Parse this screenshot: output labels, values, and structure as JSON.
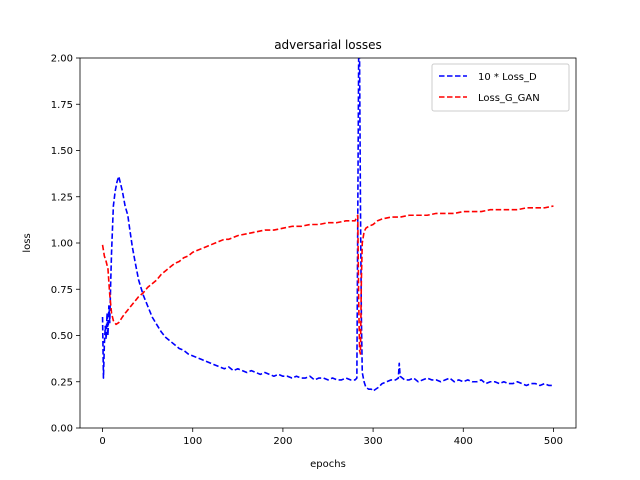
{
  "chart_data": {
    "type": "line",
    "title": "adversarial losses",
    "xlabel": "epochs",
    "ylabel": "loss",
    "xlim": [
      -25,
      525
    ],
    "ylim": [
      0.0,
      2.0
    ],
    "xticks": [
      0,
      100,
      200,
      300,
      400,
      500
    ],
    "xtick_labels": [
      "0",
      "100",
      "200",
      "300",
      "400",
      "500"
    ],
    "yticks": [
      0.0,
      0.25,
      0.5,
      0.75,
      1.0,
      1.25,
      1.5,
      1.75,
      2.0
    ],
    "ytick_labels": [
      "0.00",
      "0.25",
      "0.50",
      "0.75",
      "1.00",
      "1.25",
      "1.50",
      "1.75",
      "2.00"
    ],
    "grid": false,
    "legend_position": "top-right",
    "series": [
      {
        "name": "10 * Loss_D",
        "color": "#0000ff",
        "dash": "dashed",
        "points": [
          [
            0,
            0.6
          ],
          [
            1,
            0.27
          ],
          [
            2,
            0.45
          ],
          [
            3,
            0.55
          ],
          [
            4,
            0.48
          ],
          [
            5,
            0.62
          ],
          [
            6,
            0.5
          ],
          [
            7,
            0.66
          ],
          [
            8,
            0.57
          ],
          [
            9,
            0.78
          ],
          [
            10,
            0.95
          ],
          [
            12,
            1.2
          ],
          [
            14,
            1.28
          ],
          [
            16,
            1.33
          ],
          [
            18,
            1.36
          ],
          [
            20,
            1.32
          ],
          [
            22,
            1.28
          ],
          [
            25,
            1.2
          ],
          [
            28,
            1.15
          ],
          [
            30,
            1.08
          ],
          [
            33,
            0.98
          ],
          [
            36,
            0.9
          ],
          [
            40,
            0.8
          ],
          [
            45,
            0.72
          ],
          [
            50,
            0.66
          ],
          [
            55,
            0.6
          ],
          [
            60,
            0.56
          ],
          [
            65,
            0.52
          ],
          [
            70,
            0.49
          ],
          [
            75,
            0.47
          ],
          [
            80,
            0.45
          ],
          [
            85,
            0.43
          ],
          [
            90,
            0.42
          ],
          [
            95,
            0.4
          ],
          [
            100,
            0.39
          ],
          [
            105,
            0.38
          ],
          [
            110,
            0.37
          ],
          [
            115,
            0.36
          ],
          [
            120,
            0.35
          ],
          [
            125,
            0.34
          ],
          [
            130,
            0.33
          ],
          [
            135,
            0.32
          ],
          [
            140,
            0.33
          ],
          [
            145,
            0.31
          ],
          [
            150,
            0.32
          ],
          [
            155,
            0.31
          ],
          [
            160,
            0.3
          ],
          [
            165,
            0.31
          ],
          [
            170,
            0.3
          ],
          [
            175,
            0.29
          ],
          [
            180,
            0.3
          ],
          [
            185,
            0.29
          ],
          [
            190,
            0.28
          ],
          [
            195,
            0.29
          ],
          [
            200,
            0.28
          ],
          [
            205,
            0.28
          ],
          [
            210,
            0.27
          ],
          [
            215,
            0.28
          ],
          [
            220,
            0.27
          ],
          [
            225,
            0.27
          ],
          [
            230,
            0.28
          ],
          [
            235,
            0.26
          ],
          [
            240,
            0.27
          ],
          [
            245,
            0.27
          ],
          [
            250,
            0.26
          ],
          [
            255,
            0.27
          ],
          [
            260,
            0.26
          ],
          [
            265,
            0.26
          ],
          [
            270,
            0.27
          ],
          [
            275,
            0.26
          ],
          [
            280,
            0.26
          ],
          [
            282,
            0.27
          ],
          [
            284,
            2.0
          ],
          [
            285,
            2.0
          ],
          [
            286,
            1.2
          ],
          [
            287,
            0.6
          ],
          [
            288,
            0.3
          ],
          [
            290,
            0.25
          ],
          [
            292,
            0.22
          ],
          [
            295,
            0.21
          ],
          [
            298,
            0.21
          ],
          [
            300,
            0.2
          ],
          [
            303,
            0.21
          ],
          [
            306,
            0.22
          ],
          [
            310,
            0.24
          ],
          [
            315,
            0.25
          ],
          [
            320,
            0.26
          ],
          [
            325,
            0.26
          ],
          [
            328,
            0.27
          ],
          [
            329,
            0.35
          ],
          [
            330,
            0.28
          ],
          [
            335,
            0.26
          ],
          [
            340,
            0.26
          ],
          [
            345,
            0.27
          ],
          [
            350,
            0.25
          ],
          [
            355,
            0.26
          ],
          [
            360,
            0.27
          ],
          [
            365,
            0.26
          ],
          [
            370,
            0.26
          ],
          [
            375,
            0.25
          ],
          [
            380,
            0.26
          ],
          [
            385,
            0.27
          ],
          [
            390,
            0.25
          ],
          [
            395,
            0.26
          ],
          [
            400,
            0.25
          ],
          [
            405,
            0.26
          ],
          [
            410,
            0.25
          ],
          [
            415,
            0.25
          ],
          [
            420,
            0.26
          ],
          [
            425,
            0.24
          ],
          [
            430,
            0.25
          ],
          [
            435,
            0.25
          ],
          [
            440,
            0.24
          ],
          [
            445,
            0.25
          ],
          [
            450,
            0.24
          ],
          [
            455,
            0.24
          ],
          [
            460,
            0.25
          ],
          [
            465,
            0.24
          ],
          [
            470,
            0.23
          ],
          [
            475,
            0.24
          ],
          [
            480,
            0.24
          ],
          [
            485,
            0.23
          ],
          [
            490,
            0.24
          ],
          [
            495,
            0.23
          ],
          [
            500,
            0.23
          ]
        ]
      },
      {
        "name": "Loss_G_GAN",
        "color": "#ff0000",
        "dash": "dashed",
        "points": [
          [
            0,
            0.99
          ],
          [
            2,
            0.93
          ],
          [
            4,
            0.9
          ],
          [
            6,
            0.86
          ],
          [
            8,
            0.72
          ],
          [
            10,
            0.62
          ],
          [
            12,
            0.58
          ],
          [
            15,
            0.56
          ],
          [
            18,
            0.57
          ],
          [
            22,
            0.6
          ],
          [
            25,
            0.62
          ],
          [
            30,
            0.65
          ],
          [
            35,
            0.68
          ],
          [
            40,
            0.71
          ],
          [
            45,
            0.73
          ],
          [
            50,
            0.76
          ],
          [
            55,
            0.78
          ],
          [
            60,
            0.8
          ],
          [
            65,
            0.83
          ],
          [
            70,
            0.85
          ],
          [
            75,
            0.87
          ],
          [
            80,
            0.89
          ],
          [
            85,
            0.9
          ],
          [
            90,
            0.92
          ],
          [
            95,
            0.93
          ],
          [
            100,
            0.95
          ],
          [
            105,
            0.96
          ],
          [
            110,
            0.97
          ],
          [
            115,
            0.98
          ],
          [
            120,
            0.99
          ],
          [
            125,
            1.0
          ],
          [
            130,
            1.01
          ],
          [
            135,
            1.02
          ],
          [
            140,
            1.02
          ],
          [
            145,
            1.03
          ],
          [
            150,
            1.04
          ],
          [
            160,
            1.05
          ],
          [
            170,
            1.06
          ],
          [
            180,
            1.07
          ],
          [
            190,
            1.07
          ],
          [
            200,
            1.08
          ],
          [
            210,
            1.09
          ],
          [
            220,
            1.09
          ],
          [
            230,
            1.1
          ],
          [
            240,
            1.1
          ],
          [
            250,
            1.11
          ],
          [
            260,
            1.11
          ],
          [
            270,
            1.12
          ],
          [
            280,
            1.12
          ],
          [
            283,
            1.15
          ],
          [
            284,
            0.7
          ],
          [
            285,
            0.42
          ],
          [
            286,
            0.4
          ],
          [
            287,
            0.8
          ],
          [
            288,
            1.0
          ],
          [
            290,
            1.06
          ],
          [
            292,
            1.08
          ],
          [
            295,
            1.09
          ],
          [
            300,
            1.1
          ],
          [
            305,
            1.12
          ],
          [
            310,
            1.13
          ],
          [
            320,
            1.14
          ],
          [
            330,
            1.14
          ],
          [
            340,
            1.15
          ],
          [
            350,
            1.15
          ],
          [
            360,
            1.15
          ],
          [
            370,
            1.16
          ],
          [
            380,
            1.16
          ],
          [
            390,
            1.16
          ],
          [
            400,
            1.17
          ],
          [
            410,
            1.17
          ],
          [
            420,
            1.17
          ],
          [
            430,
            1.18
          ],
          [
            440,
            1.18
          ],
          [
            450,
            1.18
          ],
          [
            460,
            1.18
          ],
          [
            470,
            1.19
          ],
          [
            480,
            1.19
          ],
          [
            490,
            1.19
          ],
          [
            500,
            1.2
          ]
        ]
      }
    ]
  }
}
